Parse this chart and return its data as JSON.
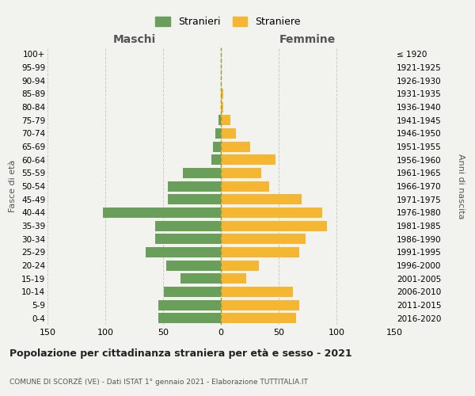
{
  "age_groups": [
    "0-4",
    "5-9",
    "10-14",
    "15-19",
    "20-24",
    "25-29",
    "30-34",
    "35-39",
    "40-44",
    "45-49",
    "50-54",
    "55-59",
    "60-64",
    "65-69",
    "70-74",
    "75-79",
    "80-84",
    "85-89",
    "90-94",
    "95-99",
    "100+"
  ],
  "birth_years": [
    "2016-2020",
    "2011-2015",
    "2006-2010",
    "2001-2005",
    "1996-2000",
    "1991-1995",
    "1986-1990",
    "1981-1985",
    "1976-1980",
    "1971-1975",
    "1966-1970",
    "1961-1965",
    "1956-1960",
    "1951-1955",
    "1946-1950",
    "1941-1945",
    "1936-1940",
    "1931-1935",
    "1926-1930",
    "1921-1925",
    "≤ 1920"
  ],
  "males": [
    54,
    54,
    49,
    35,
    47,
    65,
    57,
    57,
    102,
    46,
    46,
    33,
    8,
    7,
    5,
    2,
    0,
    0,
    0,
    0,
    0
  ],
  "females": [
    65,
    68,
    62,
    22,
    33,
    68,
    73,
    92,
    88,
    70,
    42,
    35,
    47,
    25,
    13,
    8,
    2,
    2,
    0,
    0,
    0
  ],
  "male_color": "#6a9e5b",
  "female_color": "#f5b731",
  "background_color": "#f2f2ee",
  "grid_color": "#cccccc",
  "title": "Popolazione per cittadinanza straniera per età e sesso - 2021",
  "subtitle": "COMUNE DI SCORZÈ (VE) - Dati ISTAT 1° gennaio 2021 - Elaborazione TUTTITALIA.IT",
  "left_label": "Maschi",
  "right_label": "Femmine",
  "ylabel": "Fasce di età",
  "right_ylabel": "Anni di nascita",
  "legend_male": "Stranieri",
  "legend_female": "Straniere",
  "xlim": 150
}
